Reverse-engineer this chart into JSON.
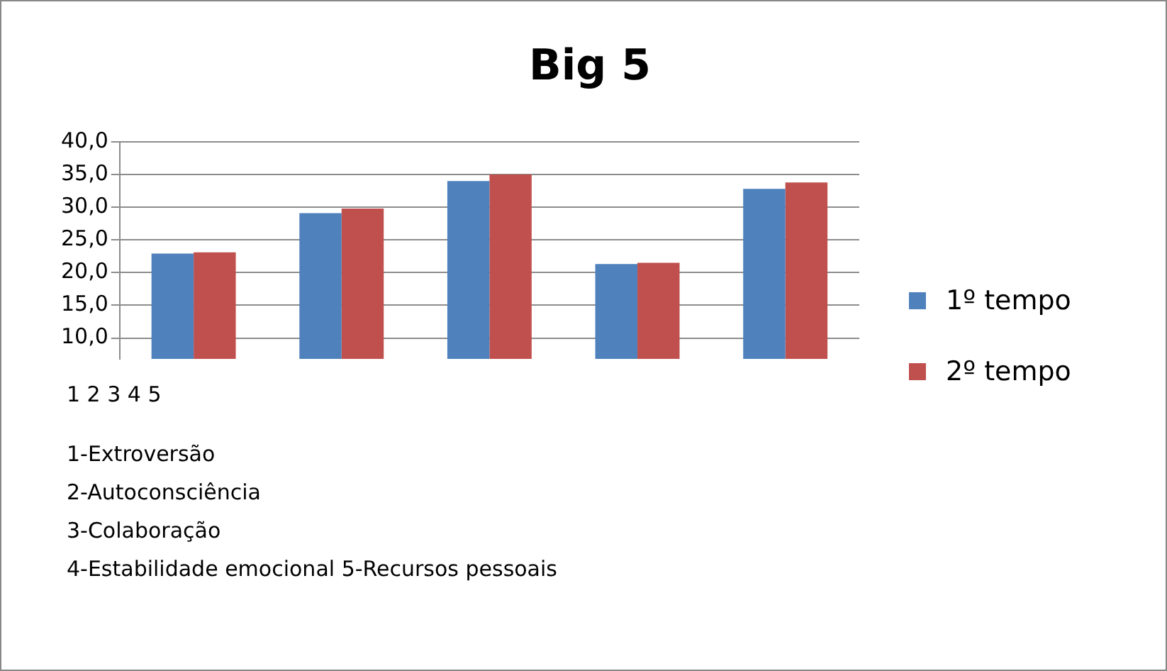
{
  "chart_data": {
    "type": "bar",
    "title": "Big 5",
    "categories": [
      null,
      null,
      null,
      null,
      null
    ],
    "series": [
      {
        "name": "1º tempo",
        "color": "#4f81bd",
        "values": [
          22.9,
          29.1,
          34.0,
          21.3,
          32.8
        ]
      },
      {
        "name": "2º tempo",
        "color": "#c0504d",
        "values": [
          23.1,
          29.8,
          35.0,
          21.5,
          33.8
        ]
      }
    ],
    "ylim": [
      6.8,
      40
    ],
    "yticks": [
      {
        "value": 10,
        "label": "10,0"
      },
      {
        "value": 15,
        "label": "15,0"
      },
      {
        "value": 20,
        "label": "20,0"
      },
      {
        "value": 25,
        "label": "25,0"
      },
      {
        "value": 30,
        "label": "30,0"
      },
      {
        "value": 35,
        "label": "35,0"
      },
      {
        "value": 40,
        "label": "40,0"
      }
    ],
    "grid": "y",
    "legend": "right",
    "annotations": [
      "1 2 3 4 5",
      "1-Extroversão",
      "2-Autoconsciência",
      "3-Colaboração",
      "4-Estabilidade emocional 5-Recursos pessoais"
    ]
  }
}
